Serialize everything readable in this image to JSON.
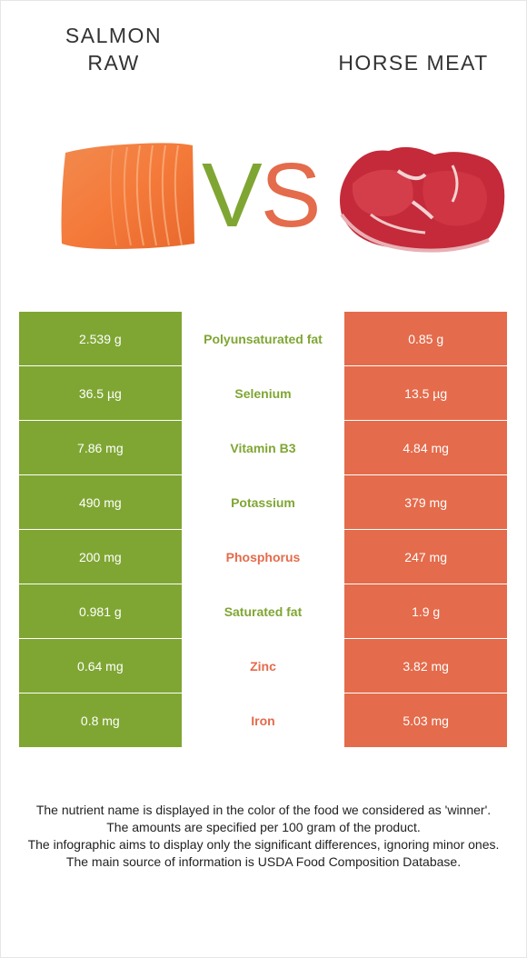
{
  "left_food": {
    "line1": "SALMON",
    "line2": "RAW",
    "color": "#7fa633"
  },
  "right_food": {
    "name": "HORSE MEAT",
    "color": "#e46b4b"
  },
  "vs": {
    "v": "V",
    "s": "S"
  },
  "rows": [
    {
      "left": "2.539 g",
      "nutrient": "Polyunsaturated fat",
      "right": "0.85 g",
      "winner": "left"
    },
    {
      "left": "36.5 µg",
      "nutrient": "Selenium",
      "right": "13.5 µg",
      "winner": "left"
    },
    {
      "left": "7.86 mg",
      "nutrient": "Vitamin B3",
      "right": "4.84 mg",
      "winner": "left"
    },
    {
      "left": "490 mg",
      "nutrient": "Potassium",
      "right": "379 mg",
      "winner": "left"
    },
    {
      "left": "200 mg",
      "nutrient": "Phosphorus",
      "right": "247 mg",
      "winner": "right"
    },
    {
      "left": "0.981 g",
      "nutrient": "Saturated fat",
      "right": "1.9 g",
      "winner": "left"
    },
    {
      "left": "0.64 mg",
      "nutrient": "Zinc",
      "right": "3.82 mg",
      "winner": "right"
    },
    {
      "left": "0.8 mg",
      "nutrient": "Iron",
      "right": "5.03 mg",
      "winner": "right"
    }
  ],
  "footer": [
    "The nutrient name is displayed in the color of the food we considered as 'winner'.",
    "The amounts are specified per 100 gram of the product.",
    "The infographic aims to display only the significant differences, ignoring minor ones.",
    "The main source of information is USDA Food Composition Database."
  ]
}
